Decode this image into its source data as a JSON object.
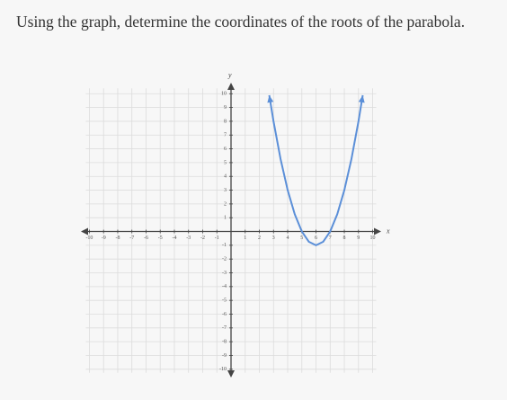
{
  "chart_data": {
    "type": "line",
    "title": "Using the graph, determine the coordinates of the roots of the parabola.",
    "xlabel": "x",
    "ylabel": "y",
    "x": [
      2.7,
      3,
      3.5,
      4,
      4.5,
      5,
      5.5,
      6,
      6.5,
      7,
      7.5,
      8,
      8.5,
      9,
      9.3
    ],
    "series": [
      {
        "color": "#5b8fd8",
        "values": [
          9.89,
          8,
          5.25,
          3,
          1.25,
          0,
          -0.75,
          -1,
          -0.75,
          0,
          1.25,
          3,
          5.25,
          8,
          9.89
        ]
      }
    ],
    "xlim": [
      -10.6,
      10.6
    ],
    "ylim": [
      -10.6,
      10.8
    ],
    "xticks": [
      -10,
      -9,
      -8,
      -7,
      -6,
      -5,
      -4,
      -3,
      -2,
      -1,
      1,
      2,
      3,
      4,
      5,
      6,
      7,
      8,
      9,
      10
    ],
    "yticks": [
      -10,
      -9,
      -8,
      -7,
      -6,
      -5,
      -4,
      -3,
      -2,
      -1,
      1,
      2,
      3,
      4,
      5,
      6,
      7,
      8,
      9,
      10
    ],
    "grid": true
  }
}
